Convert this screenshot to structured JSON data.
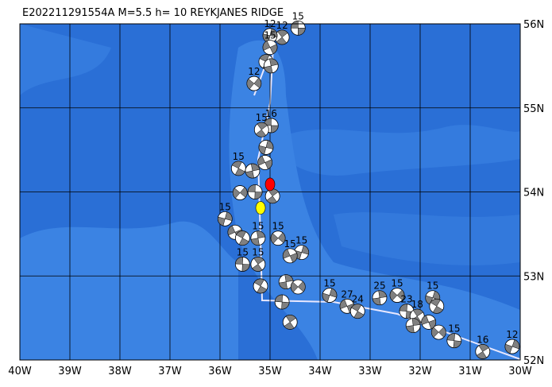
{
  "map": {
    "title": "E202211291554A  M=5.5  h= 10  REYKJANES  RIDGE",
    "lonlim": [
      -40,
      -30
    ],
    "latlim": [
      52,
      56
    ],
    "lon_ticks": [
      {
        "value": -40,
        "label": "40W"
      },
      {
        "value": -39,
        "label": "39W"
      },
      {
        "value": -38,
        "label": "38W"
      },
      {
        "value": -37,
        "label": "37W"
      },
      {
        "value": -36,
        "label": "36W"
      },
      {
        "value": -35,
        "label": "35W"
      },
      {
        "value": -34,
        "label": "34W"
      },
      {
        "value": -33,
        "label": "33W"
      },
      {
        "value": -32,
        "label": "32W"
      },
      {
        "value": -31,
        "label": "31W"
      },
      {
        "value": -30,
        "label": "30W"
      }
    ],
    "lat_ticks": [
      {
        "value": 52,
        "label": "52N"
      },
      {
        "value": 53,
        "label": "53N"
      },
      {
        "value": 54,
        "label": "54N"
      },
      {
        "value": 55,
        "label": "55N"
      },
      {
        "value": 56,
        "label": "56N"
      }
    ],
    "events": [
      {
        "lon": -34.44,
        "lat": 55.95,
        "depth": 15
      },
      {
        "lon": -34.76,
        "lat": 55.84,
        "depth": 12
      },
      {
        "lon": -35.0,
        "lat": 55.86,
        "depth": 12
      },
      {
        "lon": -35.0,
        "lat": 55.72,
        "depth": 15
      },
      {
        "lon": -35.08,
        "lat": 55.55
      },
      {
        "lon": -34.98,
        "lat": 55.5
      },
      {
        "lon": -35.32,
        "lat": 55.29,
        "depth": 12
      },
      {
        "lon": -34.98,
        "lat": 54.79,
        "depth": 16
      },
      {
        "lon": -35.17,
        "lat": 54.74,
        "depth": 15
      },
      {
        "lon": -35.08,
        "lat": 54.53
      },
      {
        "lon": -35.1,
        "lat": 54.35
      },
      {
        "lon": -35.63,
        "lat": 54.28,
        "depth": 15
      },
      {
        "lon": -35.35,
        "lat": 54.25
      },
      {
        "lon": -35.6,
        "lat": 53.99
      },
      {
        "lon": -35.3,
        "lat": 54.0
      },
      {
        "lon": -34.95,
        "lat": 53.95
      },
      {
        "lon": -35.9,
        "lat": 53.68,
        "depth": 15
      },
      {
        "lon": -35.7,
        "lat": 53.52
      },
      {
        "lon": -35.55,
        "lat": 53.45
      },
      {
        "lon": -35.24,
        "lat": 53.45,
        "depth": 15
      },
      {
        "lon": -34.84,
        "lat": 53.45,
        "depth": 15
      },
      {
        "lon": -35.55,
        "lat": 53.14,
        "depth": 15
      },
      {
        "lon": -35.24,
        "lat": 53.14,
        "depth": 15
      },
      {
        "lon": -34.37,
        "lat": 53.28,
        "depth": 15
      },
      {
        "lon": -34.6,
        "lat": 53.24,
        "depth": 15
      },
      {
        "lon": -35.19,
        "lat": 52.88
      },
      {
        "lon": -34.68,
        "lat": 52.93
      },
      {
        "lon": -34.44,
        "lat": 52.87
      },
      {
        "lon": -34.76,
        "lat": 52.69
      },
      {
        "lon": -34.6,
        "lat": 52.45
      },
      {
        "lon": -33.81,
        "lat": 52.77,
        "depth": 15
      },
      {
        "lon": -33.46,
        "lat": 52.64,
        "depth": 27
      },
      {
        "lon": -33.25,
        "lat": 52.58,
        "depth": 24
      },
      {
        "lon": -32.81,
        "lat": 52.74,
        "depth": 25
      },
      {
        "lon": -32.46,
        "lat": 52.77,
        "depth": 15
      },
      {
        "lon": -32.27,
        "lat": 52.58,
        "depth": 23
      },
      {
        "lon": -32.06,
        "lat": 52.52,
        "depth": 18
      },
      {
        "lon": -31.75,
        "lat": 52.74,
        "depth": 15
      },
      {
        "lon": -31.83,
        "lat": 52.45
      },
      {
        "lon": -31.67,
        "lat": 52.64
      },
      {
        "lon": -32.14,
        "lat": 52.41
      },
      {
        "lon": -31.63,
        "lat": 52.33
      },
      {
        "lon": -31.32,
        "lat": 52.23,
        "depth": 15
      },
      {
        "lon": -30.75,
        "lat": 52.1,
        "depth": 16
      },
      {
        "lon": -30.16,
        "lat": 52.16,
        "depth": 12
      }
    ],
    "highlights": [
      {
        "lon": -35.0,
        "lat": 54.09,
        "color": "#ff0000"
      },
      {
        "lon": -35.19,
        "lat": 53.81,
        "color": "#ffff00"
      }
    ]
  }
}
